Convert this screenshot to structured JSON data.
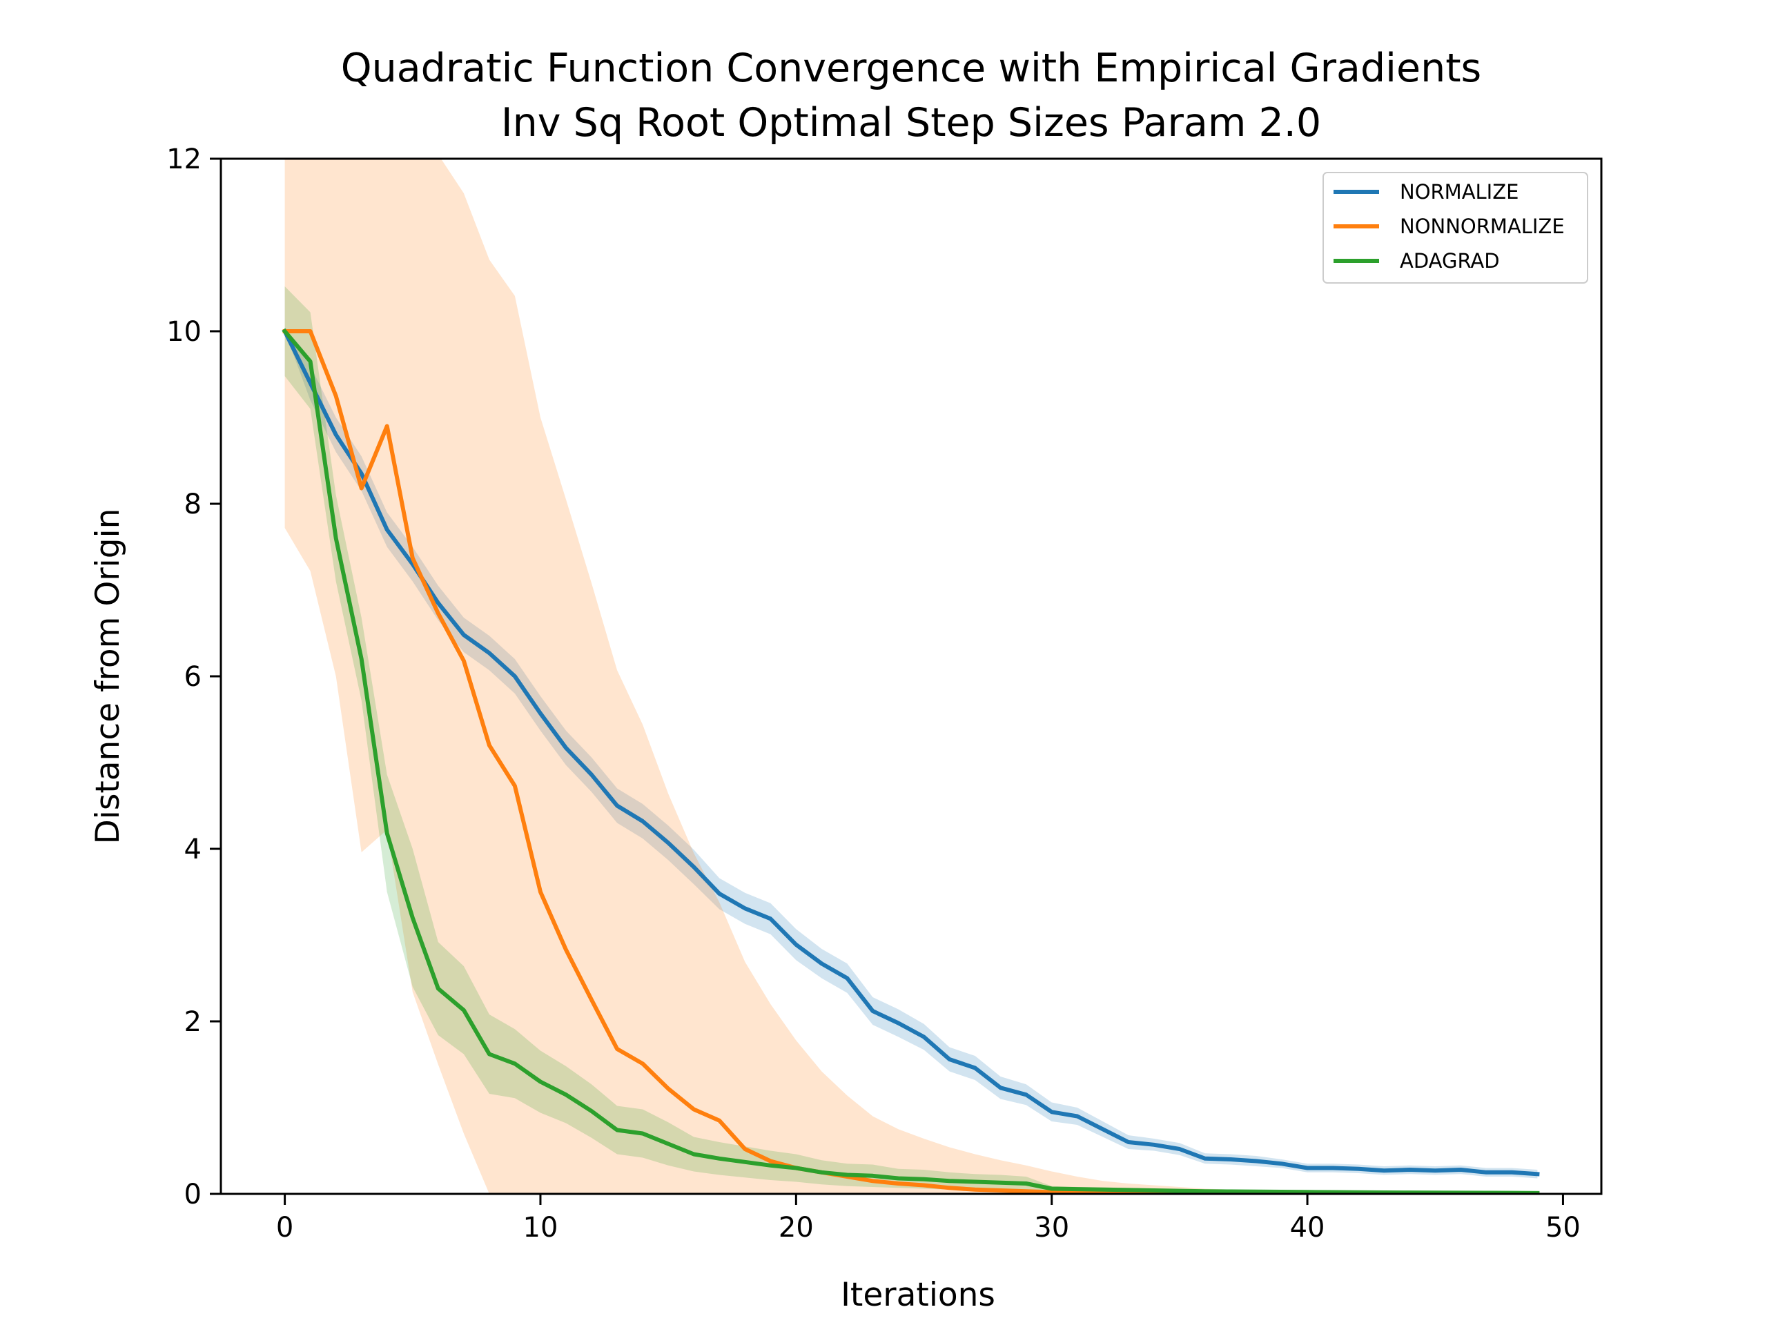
{
  "chart_data": {
    "type": "line",
    "title": "Quadratic Function Convergence with Empirical Gradients",
    "subtitle": "Inv Sq Root Optimal Step Sizes Param 2.0",
    "xlabel": "Iterations",
    "ylabel": "Distance from Origin",
    "xlim": [
      -2.5,
      51.5
    ],
    "ylim": [
      0,
      12
    ],
    "xticks": [
      0,
      10,
      20,
      30,
      40,
      50
    ],
    "yticks": [
      0,
      2,
      4,
      6,
      8,
      10,
      12
    ],
    "grid": false,
    "legend_position": "top-right",
    "x": [
      0,
      1,
      2,
      3,
      4,
      5,
      6,
      7,
      8,
      9,
      10,
      11,
      12,
      13,
      14,
      15,
      16,
      17,
      18,
      19,
      20,
      21,
      22,
      23,
      24,
      25,
      26,
      27,
      28,
      29,
      30,
      31,
      32,
      33,
      34,
      35,
      36,
      37,
      38,
      39,
      40,
      41,
      42,
      43,
      44,
      45,
      46,
      47,
      48,
      49
    ],
    "series": [
      {
        "name": "NORMALIZE",
        "color": "#1f77b4",
        "values": [
          10.0,
          9.4,
          8.8,
          8.35,
          7.7,
          7.3,
          6.85,
          6.48,
          6.27,
          6.0,
          5.57,
          5.17,
          4.86,
          4.5,
          4.32,
          4.07,
          3.79,
          3.48,
          3.31,
          3.19,
          2.89,
          2.67,
          2.5,
          2.12,
          1.98,
          1.82,
          1.56,
          1.46,
          1.23,
          1.15,
          0.95,
          0.9,
          0.75,
          0.6,
          0.57,
          0.52,
          0.41,
          0.4,
          0.38,
          0.35,
          0.3,
          0.3,
          0.29,
          0.27,
          0.28,
          0.27,
          0.28,
          0.25,
          0.25,
          0.23
        ],
        "band_lower": [
          10.0,
          9.2,
          8.6,
          8.15,
          7.5,
          7.1,
          6.65,
          6.28,
          6.07,
          5.8,
          5.37,
          4.97,
          4.66,
          4.3,
          4.12,
          3.87,
          3.59,
          3.3,
          3.13,
          3.01,
          2.71,
          2.5,
          2.33,
          1.96,
          1.82,
          1.67,
          1.42,
          1.32,
          1.1,
          1.03,
          0.84,
          0.8,
          0.66,
          0.52,
          0.5,
          0.45,
          0.35,
          0.34,
          0.32,
          0.3,
          0.25,
          0.25,
          0.24,
          0.22,
          0.23,
          0.22,
          0.23,
          0.2,
          0.2,
          0.18
        ],
        "band_upper": [
          10.0,
          9.6,
          9.0,
          8.55,
          7.9,
          7.5,
          7.05,
          6.68,
          6.47,
          6.2,
          5.77,
          5.37,
          5.06,
          4.7,
          4.52,
          4.27,
          3.99,
          3.66,
          3.49,
          3.37,
          3.07,
          2.84,
          2.67,
          2.28,
          2.14,
          1.97,
          1.7,
          1.6,
          1.36,
          1.27,
          1.06,
          1.0,
          0.84,
          0.68,
          0.64,
          0.59,
          0.47,
          0.46,
          0.44,
          0.4,
          0.35,
          0.35,
          0.34,
          0.32,
          0.33,
          0.32,
          0.33,
          0.3,
          0.3,
          0.28
        ]
      },
      {
        "name": "NONNORMALIZE",
        "color": "#ff7f0e",
        "values": [
          10.0,
          10.0,
          9.25,
          8.18,
          8.9,
          7.37,
          6.73,
          6.18,
          5.2,
          4.73,
          3.5,
          2.83,
          2.25,
          1.68,
          1.51,
          1.22,
          0.98,
          0.85,
          0.52,
          0.38,
          0.3,
          0.25,
          0.2,
          0.15,
          0.12,
          0.1,
          0.07,
          0.05,
          0.04,
          0.03,
          0.02,
          0.015,
          0.012,
          0.01,
          0.008,
          0.006,
          0.005,
          0.004,
          0.003,
          0.003,
          0.002,
          0.002,
          0.002,
          0.001,
          0.001,
          0.001,
          0.001,
          0.001,
          0.001,
          0.001
        ],
        "band_lower": [
          7.72,
          7.22,
          6.0,
          3.96,
          4.22,
          2.34,
          1.5,
          0.7,
          0,
          0,
          0,
          0,
          0,
          0,
          0,
          0,
          0,
          0,
          0,
          0,
          0,
          0,
          0,
          0,
          0,
          0,
          0,
          0,
          0,
          0,
          0,
          0,
          0,
          0,
          0,
          0,
          0,
          0,
          0,
          0,
          0,
          0,
          0,
          0,
          0,
          0,
          0,
          0,
          0,
          0
        ],
        "band_upper": [
          12.28,
          12.78,
          12.5,
          12.4,
          12.4,
          12.4,
          12.05,
          11.6,
          10.83,
          10.41,
          9.0,
          8.05,
          7.08,
          6.07,
          5.44,
          4.64,
          3.95,
          3.38,
          2.69,
          2.2,
          1.78,
          1.42,
          1.14,
          0.9,
          0.75,
          0.64,
          0.54,
          0.46,
          0.39,
          0.33,
          0.26,
          0.2,
          0.15,
          0.12,
          0.1,
          0.08,
          0.06,
          0.05,
          0.04,
          0.03,
          0.03,
          0.02,
          0.02,
          0.02,
          0.02,
          0.01,
          0.01,
          0.01,
          0.01,
          0.01
        ]
      },
      {
        "name": "ADAGRAD",
        "color": "#2ca02c",
        "values": [
          10.0,
          9.65,
          7.6,
          6.2,
          4.18,
          3.2,
          2.38,
          2.13,
          1.62,
          1.51,
          1.3,
          1.15,
          0.96,
          0.74,
          0.7,
          0.58,
          0.46,
          0.41,
          0.37,
          0.33,
          0.3,
          0.25,
          0.22,
          0.21,
          0.18,
          0.17,
          0.15,
          0.14,
          0.13,
          0.12,
          0.06,
          0.055,
          0.05,
          0.045,
          0.04,
          0.035,
          0.03,
          0.028,
          0.026,
          0.024,
          0.022,
          0.02,
          0.018,
          0.016,
          0.015,
          0.014,
          0.013,
          0.012,
          0.011,
          0.01
        ],
        "band_lower": [
          9.48,
          9.1,
          7.1,
          5.72,
          3.5,
          2.4,
          1.84,
          1.62,
          1.16,
          1.11,
          0.94,
          0.82,
          0.65,
          0.46,
          0.42,
          0.33,
          0.26,
          0.22,
          0.19,
          0.16,
          0.14,
          0.11,
          0.09,
          0.08,
          0.07,
          0.06,
          0.05,
          0.05,
          0.04,
          0.04,
          0.03,
          0.03,
          0.025,
          0.02,
          0.02,
          0.015,
          0.012,
          0.01,
          0.01,
          0.01,
          0.008,
          0.007,
          0.006,
          0.005,
          0.005,
          0.004,
          0.004,
          0.003,
          0.003,
          0.003
        ],
        "band_upper": [
          10.52,
          10.22,
          8.1,
          6.68,
          4.86,
          4.0,
          2.92,
          2.64,
          2.08,
          1.91,
          1.66,
          1.48,
          1.27,
          1.02,
          0.98,
          0.83,
          0.66,
          0.6,
          0.55,
          0.5,
          0.46,
          0.39,
          0.35,
          0.34,
          0.29,
          0.28,
          0.25,
          0.23,
          0.22,
          0.2,
          0.09,
          0.08,
          0.075,
          0.07,
          0.06,
          0.055,
          0.048,
          0.046,
          0.042,
          0.038,
          0.036,
          0.033,
          0.03,
          0.027,
          0.025,
          0.024,
          0.022,
          0.021,
          0.019,
          0.017
        ]
      }
    ]
  }
}
